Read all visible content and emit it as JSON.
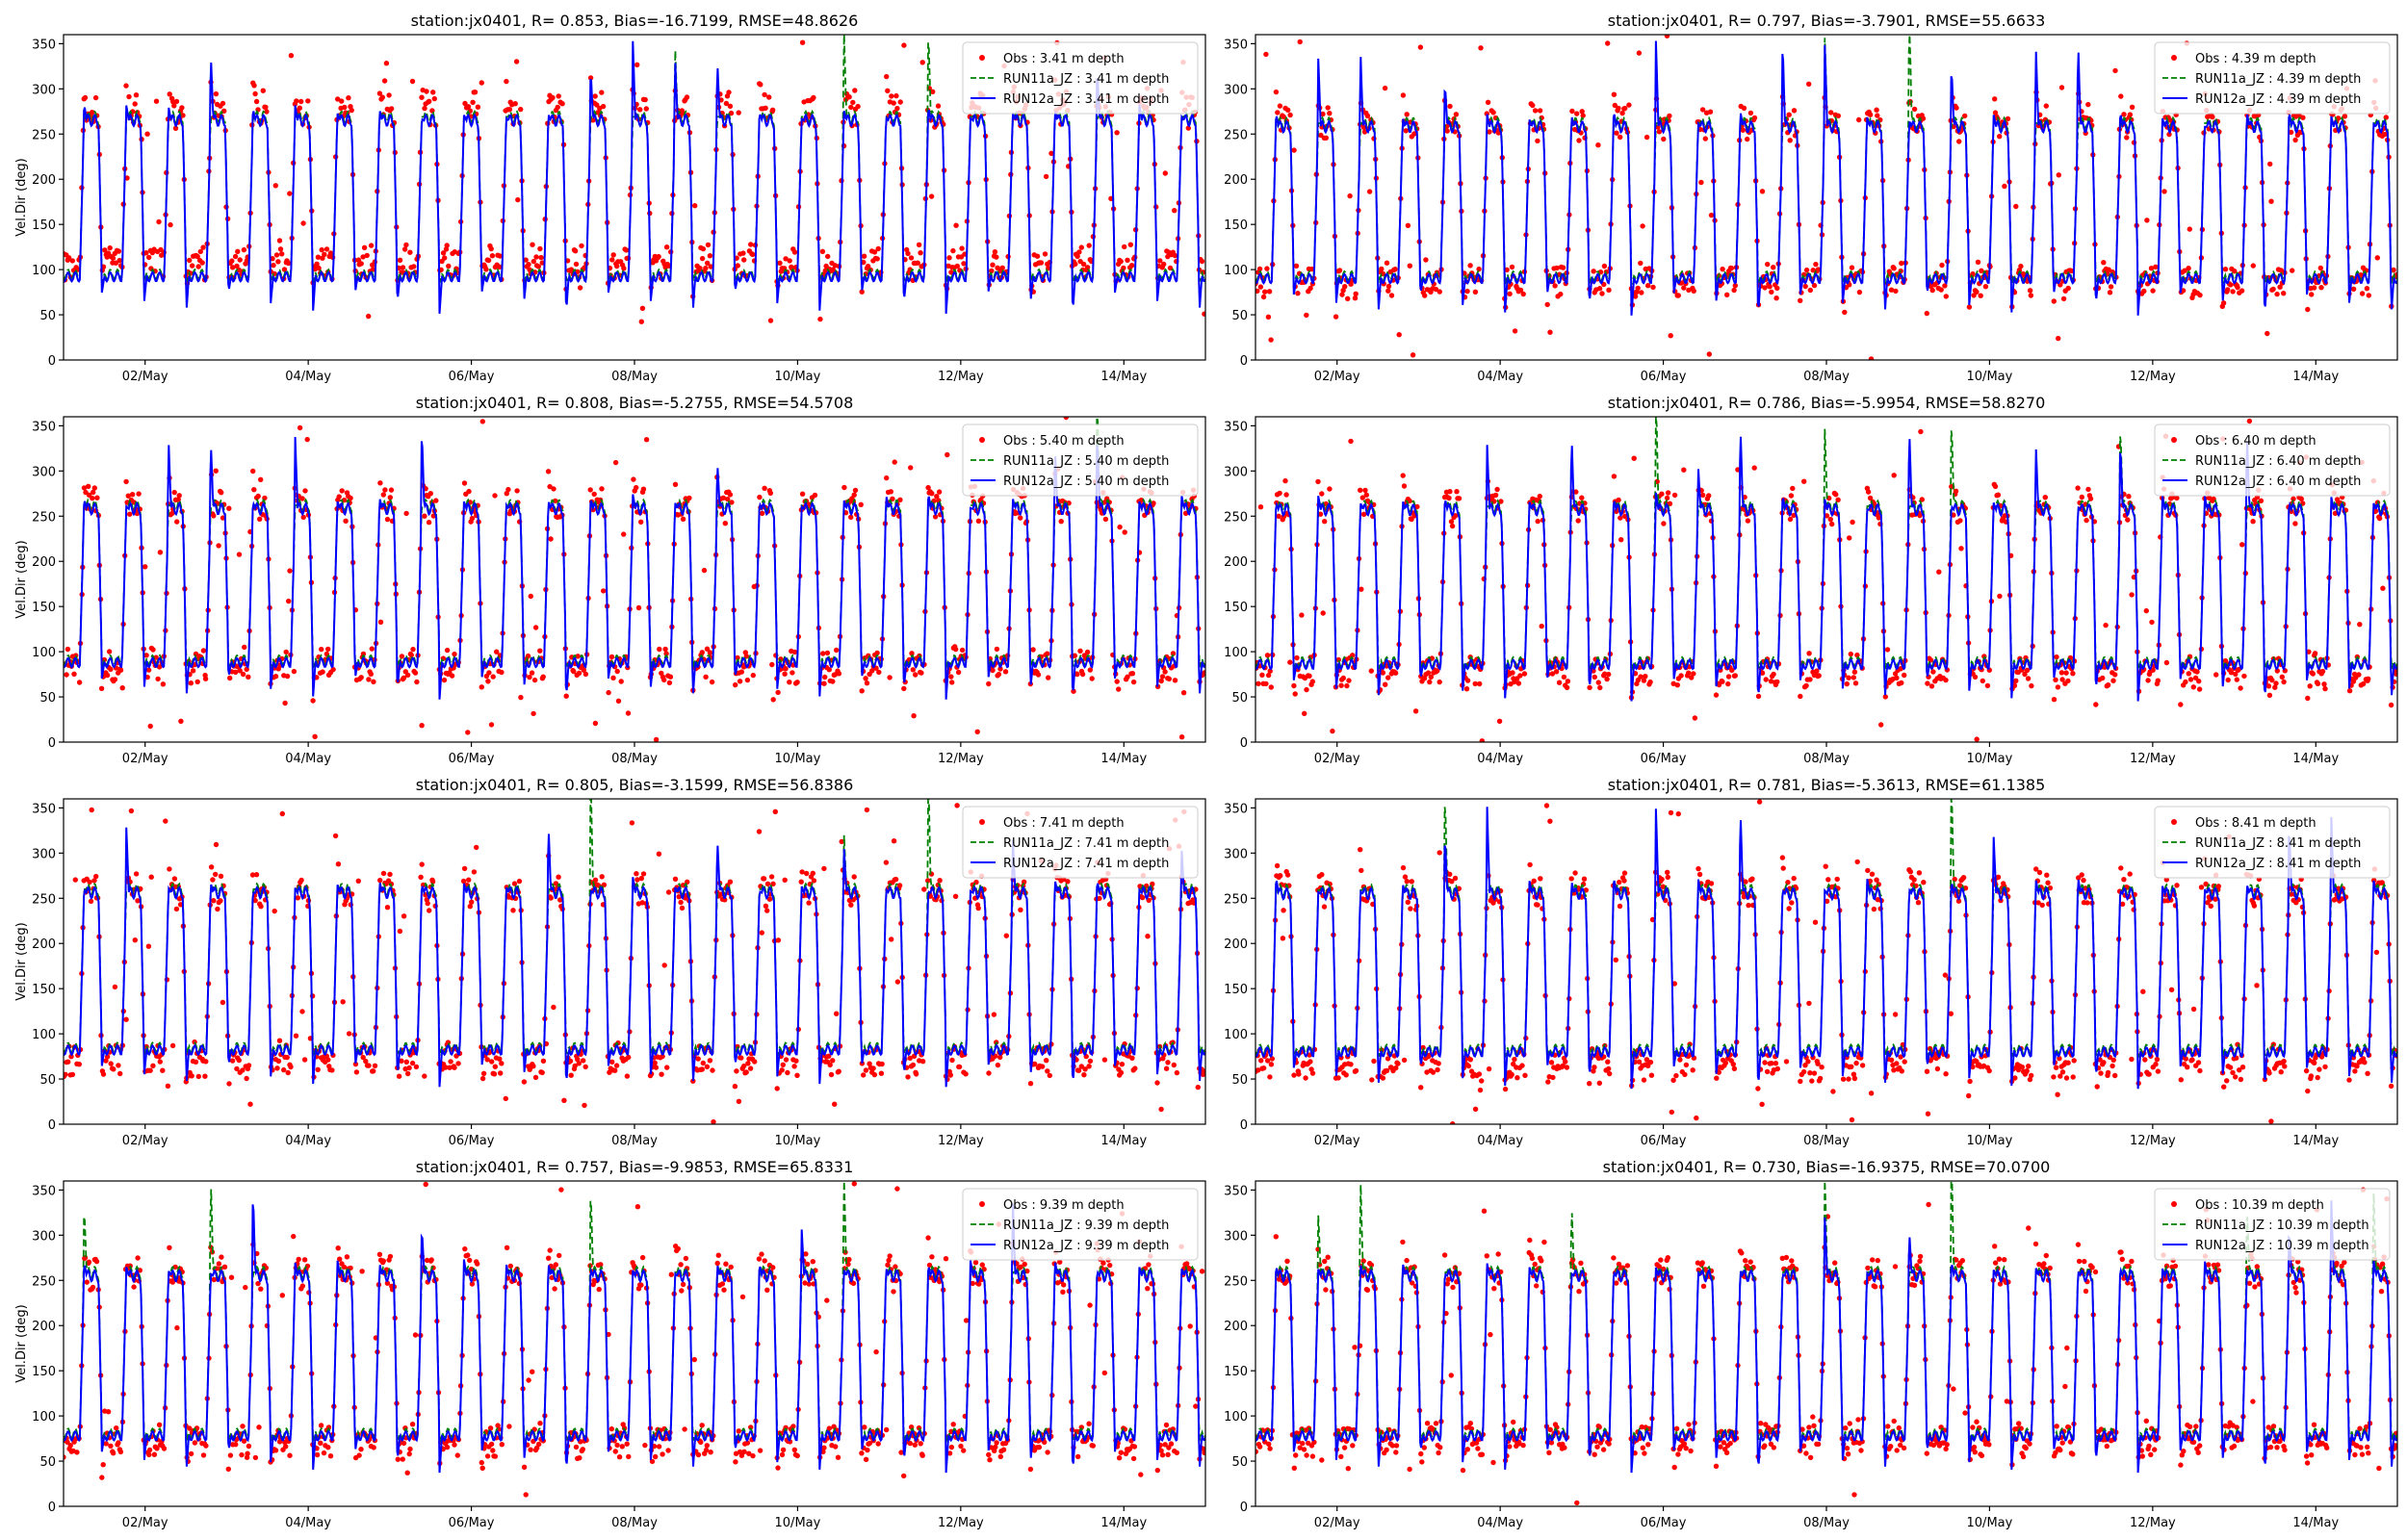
{
  "figure": {
    "background": "#ffffff"
  },
  "colors": {
    "obs": "#ff0000",
    "run11a": "#008000",
    "run12a": "#0000ff",
    "axis": "#000000"
  },
  "chart_data": [
    {
      "type": "line",
      "title": "station:jx0401, R= 0.853, Bias=-16.7199, RMSE=48.8626",
      "ylabel": "Vel.Dir (deg)",
      "xlabel": "",
      "xlim": [
        "2020-05-01 00:00",
        "2020-05-15 00:00"
      ],
      "ylim": [
        0,
        360
      ],
      "xticks": [
        "02/May",
        "04/May",
        "06/May",
        "08/May",
        "10/May",
        "12/May",
        "14/May"
      ],
      "yticks": [
        0,
        50,
        100,
        150,
        200,
        250,
        300,
        350
      ],
      "legend_loc": "upper right",
      "depth": "3.41 m depth",
      "flood_direction": 277,
      "ebb_direction": 108,
      "run12a_flood": 265,
      "run12a_ebb": 92,
      "series": [
        {
          "name": "Obs : 3.41 m depth",
          "style": "markers"
        },
        {
          "name": "RUN11a_JZ : 3.41 m depth",
          "style": "dashed"
        },
        {
          "name": "RUN12a_JZ : 3.41 m depth",
          "style": "solid"
        }
      ]
    },
    {
      "type": "line",
      "title": "station:jx0401, R= 0.797, Bias=-3.7901, RMSE=55.6633",
      "ylabel": "",
      "xlabel": "",
      "xlim": [
        "2020-05-01 00:00",
        "2020-05-15 00:00"
      ],
      "ylim": [
        0,
        360
      ],
      "xticks": [
        "02/May",
        "04/May",
        "06/May",
        "08/May",
        "10/May",
        "12/May",
        "14/May"
      ],
      "yticks": [
        0,
        50,
        100,
        150,
        200,
        250,
        300,
        350
      ],
      "legend_loc": "upper right",
      "depth": "4.39 m depth",
      "flood_direction": 262,
      "ebb_direction": 88,
      "run12a_flood": 258,
      "run12a_ebb": 90,
      "series": [
        {
          "name": "Obs : 4.39 m depth",
          "style": "markers"
        },
        {
          "name": "RUN11a_JZ : 4.39 m depth",
          "style": "dashed"
        },
        {
          "name": "RUN12a_JZ : 4.39 m depth",
          "style": "solid"
        }
      ]
    },
    {
      "type": "line",
      "title": "station:jx0401, R= 0.808, Bias=-5.2755, RMSE=54.5708",
      "ylabel": "Vel.Dir (deg)",
      "xlabel": "",
      "xlim": [
        "2020-05-01 00:00",
        "2020-05-15 00:00"
      ],
      "ylim": [
        0,
        360
      ],
      "xticks": [
        "02/May",
        "04/May",
        "06/May",
        "08/May",
        "10/May",
        "12/May",
        "14/May"
      ],
      "yticks": [
        0,
        50,
        100,
        150,
        200,
        250,
        300,
        350
      ],
      "legend_loc": "upper right",
      "depth": "5.40 m depth",
      "flood_direction": 262,
      "ebb_direction": 85,
      "run12a_flood": 258,
      "run12a_ebb": 88,
      "series": [
        {
          "name": "Obs : 5.40 m depth",
          "style": "markers"
        },
        {
          "name": "RUN11a_JZ : 5.40 m depth",
          "style": "dashed"
        },
        {
          "name": "RUN12a_JZ : 5.40 m depth",
          "style": "solid"
        }
      ]
    },
    {
      "type": "line",
      "title": "station:jx0401, R= 0.786, Bias=-5.9954, RMSE=58.8270",
      "ylabel": "",
      "xlabel": "",
      "xlim": [
        "2020-05-01 00:00",
        "2020-05-15 00:00"
      ],
      "ylim": [
        0,
        360
      ],
      "xticks": [
        "02/May",
        "04/May",
        "06/May",
        "08/May",
        "10/May",
        "12/May",
        "14/May"
      ],
      "yticks": [
        0,
        50,
        100,
        150,
        200,
        250,
        300,
        350
      ],
      "legend_loc": "upper right",
      "depth": "6.40 m depth",
      "flood_direction": 260,
      "ebb_direction": 78,
      "run12a_flood": 257,
      "run12a_ebb": 86,
      "series": [
        {
          "name": "Obs : 6.40 m depth",
          "style": "markers"
        },
        {
          "name": "RUN11a_JZ : 6.40 m depth",
          "style": "dashed"
        },
        {
          "name": "RUN12a_JZ : 6.40 m depth",
          "style": "solid"
        }
      ]
    },
    {
      "type": "line",
      "title": "station:jx0401, R= 0.805, Bias=-3.1599, RMSE=56.8386",
      "ylabel": "Vel.Dir (deg)",
      "xlabel": "",
      "xlim": [
        "2020-05-01 00:00",
        "2020-05-15 00:00"
      ],
      "ylim": [
        0,
        360
      ],
      "xticks": [
        "02/May",
        "04/May",
        "06/May",
        "08/May",
        "10/May",
        "12/May",
        "14/May"
      ],
      "yticks": [
        0,
        50,
        100,
        150,
        200,
        250,
        300,
        350
      ],
      "legend_loc": "upper right",
      "depth": "7.41 m depth",
      "flood_direction": 258,
      "ebb_direction": 72,
      "run12a_flood": 256,
      "run12a_ebb": 82,
      "series": [
        {
          "name": "Obs : 7.41 m depth",
          "style": "markers"
        },
        {
          "name": "RUN11a_JZ : 7.41 m depth",
          "style": "dashed"
        },
        {
          "name": "RUN12a_JZ : 7.41 m depth",
          "style": "solid"
        }
      ]
    },
    {
      "type": "line",
      "title": "station:jx0401, R= 0.781, Bias=-5.3613, RMSE=61.1385",
      "ylabel": "",
      "xlabel": "",
      "xlim": [
        "2020-05-01 00:00",
        "2020-05-15 00:00"
      ],
      "ylim": [
        0,
        360
      ],
      "xticks": [
        "02/May",
        "04/May",
        "06/May",
        "08/May",
        "10/May",
        "12/May",
        "14/May"
      ],
      "yticks": [
        0,
        50,
        100,
        150,
        200,
        250,
        300,
        350
      ],
      "legend_loc": "upper right",
      "depth": "8.41 m depth",
      "flood_direction": 258,
      "ebb_direction": 68,
      "run12a_flood": 255,
      "run12a_ebb": 80,
      "series": [
        {
          "name": "Obs : 8.41 m depth",
          "style": "markers"
        },
        {
          "name": "RUN11a_JZ : 8.41 m depth",
          "style": "dashed"
        },
        {
          "name": "RUN12a_JZ : 8.41 m depth",
          "style": "solid"
        }
      ]
    },
    {
      "type": "line",
      "title": "station:jx0401, R= 0.757, Bias=-9.9853, RMSE=65.8331",
      "ylabel": "Vel.Dir (deg)",
      "xlabel": "",
      "xlim": [
        "2020-05-01 00:00",
        "2020-05-15 00:00"
      ],
      "ylim": [
        0,
        360
      ],
      "xticks": [
        "02/May",
        "04/May",
        "06/May",
        "08/May",
        "10/May",
        "12/May",
        "14/May"
      ],
      "yticks": [
        0,
        50,
        100,
        150,
        200,
        250,
        300,
        350
      ],
      "legend_loc": "upper right",
      "depth": "9.39 m depth",
      "flood_direction": 258,
      "ebb_direction": 72,
      "run12a_flood": 255,
      "run12a_ebb": 78,
      "series": [
        {
          "name": "Obs : 9.39 m depth",
          "style": "markers"
        },
        {
          "name": "RUN11a_JZ : 9.39 m depth",
          "style": "dashed"
        },
        {
          "name": "RUN12a_JZ : 9.39 m depth",
          "style": "solid"
        }
      ]
    },
    {
      "type": "line",
      "title": "station:jx0401, R= 0.730, Bias=-16.9375, RMSE=70.0700",
      "ylabel": "",
      "xlabel": "",
      "xlim": [
        "2020-05-01 00:00",
        "2020-05-15 00:00"
      ],
      "ylim": [
        0,
        360
      ],
      "xticks": [
        "02/May",
        "04/May",
        "06/May",
        "08/May",
        "10/May",
        "12/May",
        "14/May"
      ],
      "yticks": [
        0,
        50,
        100,
        150,
        200,
        250,
        300,
        350
      ],
      "legend_loc": "upper right",
      "depth": "10.39 m depth",
      "flood_direction": 258,
      "ebb_direction": 75,
      "run12a_flood": 255,
      "run12a_ebb": 78,
      "series": [
        {
          "name": "Obs : 10.39 m depth",
          "style": "markers"
        },
        {
          "name": "RUN11a_JZ : 10.39 m depth",
          "style": "dashed"
        },
        {
          "name": "RUN12a_JZ : 10.39 m depth",
          "style": "solid"
        }
      ]
    }
  ]
}
